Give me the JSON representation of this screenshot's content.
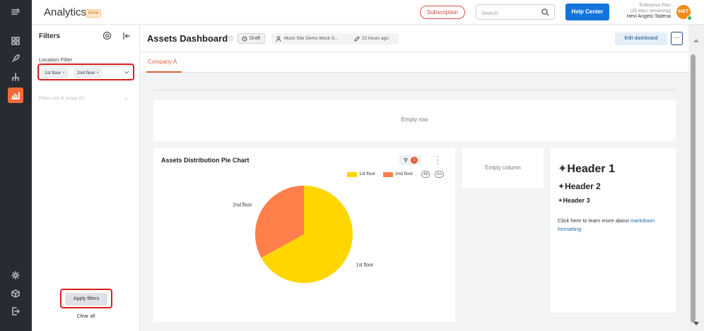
{
  "app": {
    "title": "Analytics",
    "badge": "Beta"
  },
  "topbar": {
    "subscription_label": "Subscription",
    "search_placeholder": "Search",
    "help_label": "Help Center",
    "plan_line1": "Enterprise Plan",
    "plan_line2": "(25 days remaining)",
    "user_name": "Hevi Angelo Tadena",
    "avatar_initials": "H&T"
  },
  "rail": {
    "items": [
      {
        "name": "menu-toggle-icon"
      },
      {
        "name": "dashboard-grid-icon"
      },
      {
        "name": "rocket-icon"
      },
      {
        "name": "hierarchy-icon"
      },
      {
        "name": "analytics-chart-icon",
        "active": true
      },
      {
        "name": "settings-gear-icon"
      },
      {
        "name": "cube-icon"
      },
      {
        "name": "logout-door-icon"
      }
    ],
    "active_color": "#f26b3a"
  },
  "filters": {
    "title": "Filters",
    "location_label": "Location Filter",
    "chips": [
      {
        "label": "1st floor",
        "remove": "×"
      },
      {
        "label": "2nd floor",
        "remove": "×"
      }
    ],
    "out_of_scope": "Filters out of scope (0)",
    "apply_label": "Apply filters",
    "clear_label": "Clear all"
  },
  "dashboard": {
    "title": "Assets Dashboard",
    "status": "Draft",
    "site": "Mock Site Demo Mock S...",
    "modified": "22 hours ago",
    "edit_label": "Edit dashboard",
    "more_label": "···",
    "tabs": [
      {
        "label": "Company A",
        "active": true
      }
    ]
  },
  "empty_row_label": "Empty row",
  "empty_column_label": "Empty column",
  "pie_card": {
    "title": "Assets Distribution Pie Chart",
    "filter_count": "1",
    "legend_all": "All",
    "legend_inv": "Inv"
  },
  "chart_data": {
    "type": "pie",
    "title": "Assets Distribution Pie Chart",
    "categories": [
      "1st floor",
      "2nd floor"
    ],
    "values": [
      67,
      33
    ],
    "colors": [
      "#ffd600",
      "#ff7f4a"
    ],
    "legend_position": "top-right"
  },
  "markdown": {
    "h1": "Header 1",
    "h2": "Header 2",
    "h3": "Header 3",
    "star": "✦",
    "body_text": "Click here to learn more about ",
    "link_text": "markdown formatting"
  }
}
